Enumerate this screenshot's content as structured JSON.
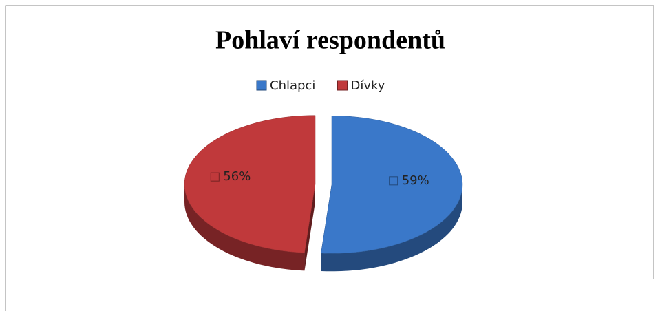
{
  "chart_data": {
    "type": "pie",
    "title": "Pohlaví respondentů",
    "categories": [
      "Chlapci",
      "Dívky"
    ],
    "values": [
      59,
      56
    ],
    "value_labels": [
      "59%",
      "56%"
    ],
    "colors": [
      "#3a78c9",
      "#c0393b"
    ],
    "legend": "top"
  }
}
